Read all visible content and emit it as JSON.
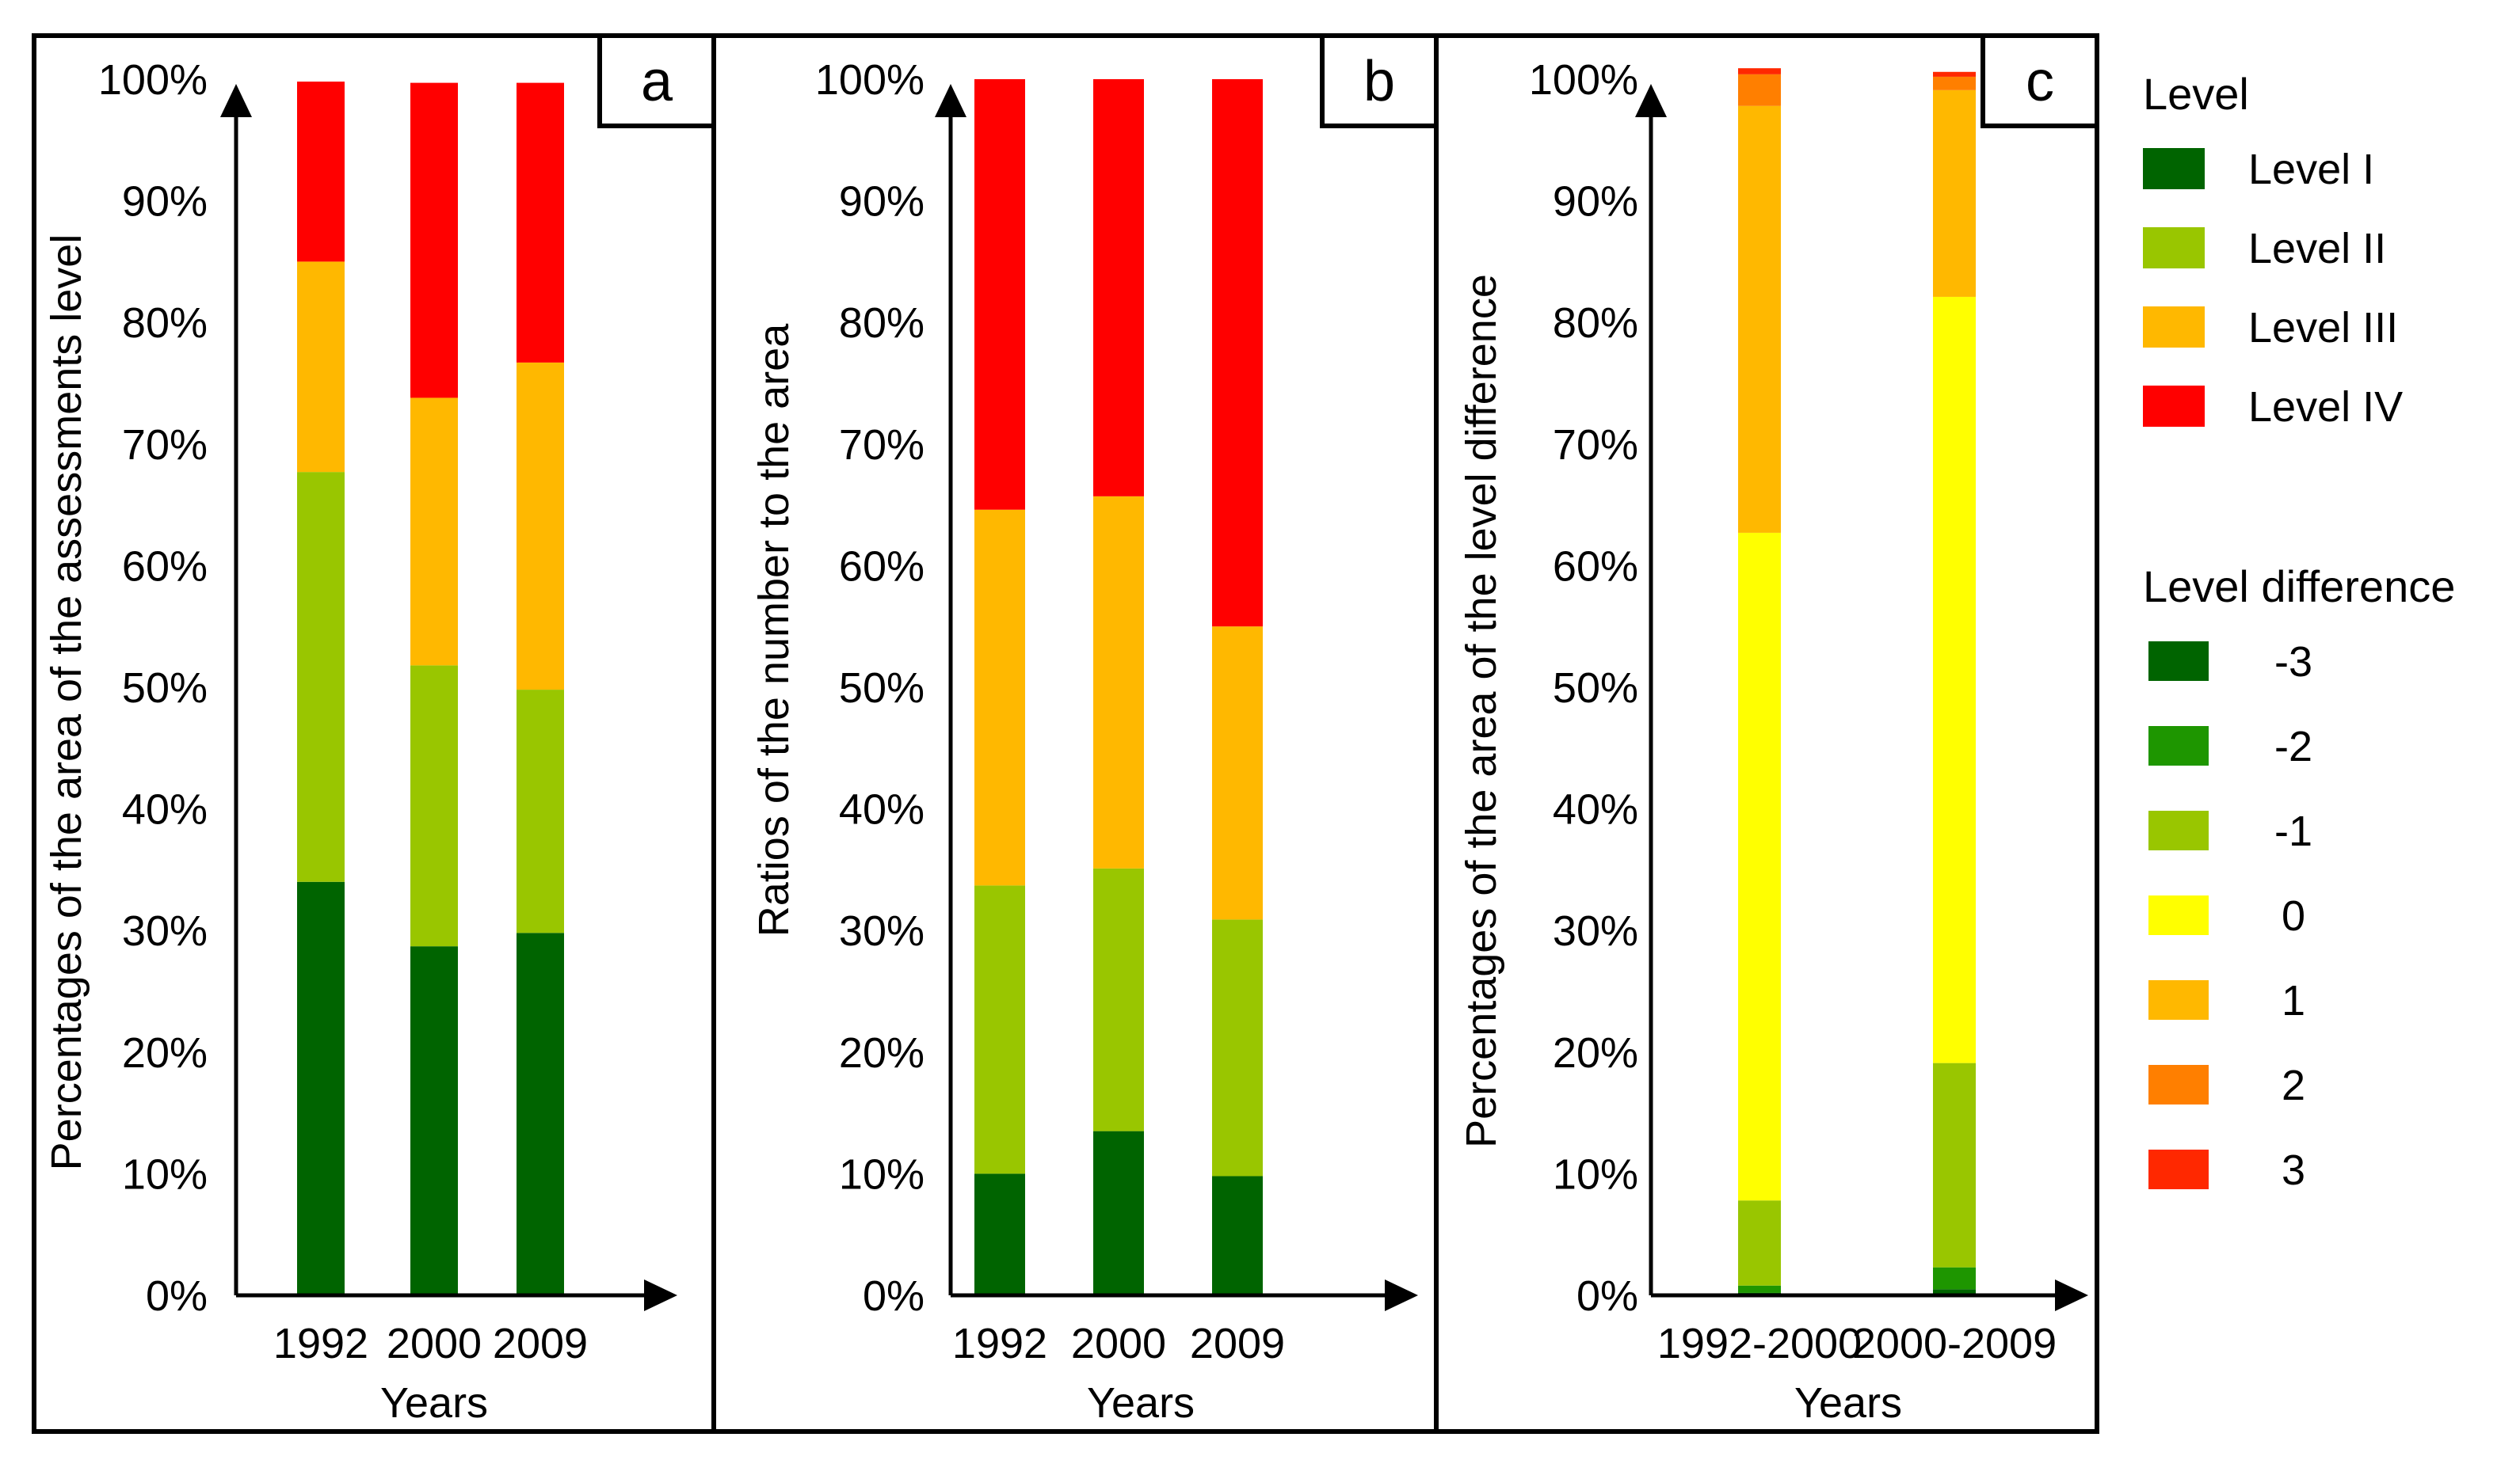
{
  "legend": {
    "level_title": "Level",
    "levels": [
      {
        "label": "Level I",
        "color": "#006400"
      },
      {
        "label": "Level II",
        "color": "#99C600"
      },
      {
        "label": "Level III",
        "color": "#FFB800"
      },
      {
        "label": "Level IV",
        "color": "#FF0000"
      }
    ],
    "difference_title": "Level difference",
    "differences": [
      {
        "label": "-3",
        "color": "#006400"
      },
      {
        "label": "-2",
        "color": "#1E9600"
      },
      {
        "label": "-1",
        "color": "#99C600"
      },
      {
        "label": "0",
        "color": "#FFFF00"
      },
      {
        "label": "1",
        "color": "#FFB800"
      },
      {
        "label": "2",
        "color": "#FF7F00"
      },
      {
        "label": "3",
        "color": "#FF2800"
      }
    ]
  },
  "chart_data": [
    {
      "panel": "a",
      "type": "bar",
      "stacked": true,
      "title": "",
      "xlabel": "Years",
      "ylabel": "Percentages of the area of the assessments level",
      "categories": [
        "1992",
        "2000",
        "2009"
      ],
      "ylim": [
        0,
        100
      ],
      "yticks": [
        "0%",
        "10%",
        "20%",
        "30%",
        "40%",
        "50%",
        "60%",
        "70%",
        "80%",
        "90%",
        "100%"
      ],
      "series": [
        {
          "name": "Level I",
          "color": "#006400",
          "values": [
            34,
            28.7,
            29.8
          ]
        },
        {
          "name": "Level II",
          "color": "#99C600",
          "values": [
            33.7,
            23.1,
            20
          ]
        },
        {
          "name": "Level III",
          "color": "#FFB800",
          "values": [
            17.3,
            22,
            26.9
          ]
        },
        {
          "name": "Level IV",
          "color": "#FF0000",
          "values": [
            14.8,
            25.9,
            23
          ]
        }
      ]
    },
    {
      "panel": "b",
      "type": "bar",
      "stacked": true,
      "title": "",
      "xlabel": "Years",
      "ylabel": "Ratios of the number to the area",
      "categories": [
        "1992",
        "2000",
        "2009"
      ],
      "ylim": [
        0,
        100
      ],
      "yticks": [
        "0%",
        "10%",
        "20%",
        "30%",
        "40%",
        "50%",
        "60%",
        "70%",
        "80%",
        "90%",
        "100%"
      ],
      "series": [
        {
          "name": "Level I",
          "color": "#006400",
          "values": [
            10,
            13.5,
            9.8
          ]
        },
        {
          "name": "Level II",
          "color": "#99C600",
          "values": [
            23.7,
            21.6,
            21.1
          ]
        },
        {
          "name": "Level III",
          "color": "#FFB800",
          "values": [
            30.9,
            30.6,
            24.1
          ]
        },
        {
          "name": "Level IV",
          "color": "#FF0000",
          "values": [
            35.4,
            34.3,
            45
          ]
        }
      ]
    },
    {
      "panel": "c",
      "type": "bar",
      "stacked": true,
      "title": "",
      "xlabel": "Years",
      "ylabel": "Percentages of the area of the level difference",
      "categories": [
        "1992-2000",
        "2000-2009"
      ],
      "ylim": [
        0,
        100
      ],
      "yticks": [
        "0%",
        "10%",
        "20%",
        "30%",
        "40%",
        "50%",
        "60%",
        "70%",
        "80%",
        "90%",
        "100%"
      ],
      "series": [
        {
          "name": "-3",
          "color": "#006400",
          "values": [
            0.2,
            0.5
          ]
        },
        {
          "name": "-2",
          "color": "#1E9600",
          "values": [
            0.6,
            1.8
          ]
        },
        {
          "name": "-1",
          "color": "#99C600",
          "values": [
            7,
            16.8
          ]
        },
        {
          "name": "0",
          "color": "#FFFF00",
          "values": [
            54.9,
            63
          ]
        },
        {
          "name": "1",
          "color": "#FFB800",
          "values": [
            35.1,
            17
          ]
        },
        {
          "name": "2",
          "color": "#FF7F00",
          "values": [
            2.6,
            1.1
          ]
        },
        {
          "name": "3",
          "color": "#FF2800",
          "values": [
            0.5,
            0.4
          ]
        }
      ]
    }
  ]
}
